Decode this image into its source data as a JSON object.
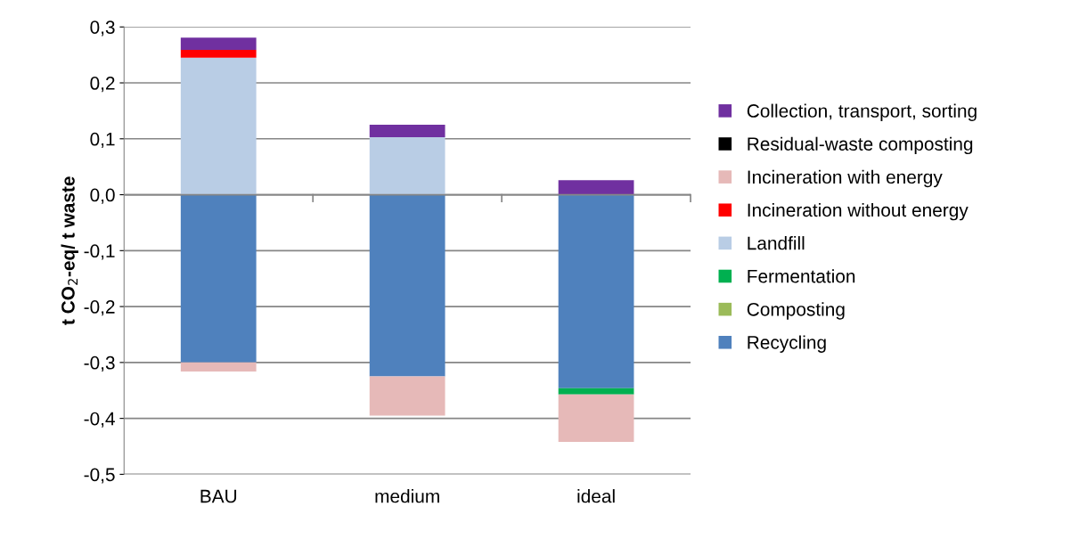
{
  "chart_data": {
    "type": "bar",
    "stacked": true,
    "ylabel": "t CO$_{2}$-eq/ t waste",
    "categories": [
      "BAU",
      "medium",
      "ideal"
    ],
    "series": [
      {
        "name": "Recycling",
        "color": "#4f81bd",
        "values": [
          -0.3,
          -0.325,
          -0.346
        ]
      },
      {
        "name": "Composting",
        "color": "#9bbb59",
        "values": [
          0,
          0,
          0
        ]
      },
      {
        "name": "Fermentation",
        "color": "#00b050",
        "values": [
          0,
          0,
          -0.011
        ]
      },
      {
        "name": "Landfill",
        "color": "#b9cde5",
        "values": [
          0.245,
          0.103,
          0
        ]
      },
      {
        "name": "Incineration without energy",
        "color": "#ff0000",
        "values": [
          0.014,
          0,
          0
        ]
      },
      {
        "name": "Incineration with energy",
        "color": "#e6b9b8",
        "values": [
          -0.016,
          -0.07,
          -0.085
        ]
      },
      {
        "name": "Residual-waste composting",
        "color": "#000000",
        "values": [
          0,
          0,
          0
        ]
      },
      {
        "name": "Collection, transport, sorting",
        "color": "#7030a0",
        "values": [
          0.022,
          0.022,
          0.026
        ]
      }
    ],
    "ylim": [
      -0.5,
      0.3
    ],
    "yticks": [
      {
        "value": -0.5,
        "label": "-0,5"
      },
      {
        "value": -0.4,
        "label": "-0,4"
      },
      {
        "value": -0.3,
        "label": "-0,3"
      },
      {
        "value": -0.2,
        "label": "-0,2"
      },
      {
        "value": -0.1,
        "label": "-0,1"
      },
      {
        "value": 0,
        "label": "0,0"
      },
      {
        "value": 0.1,
        "label": "0,1"
      },
      {
        "value": 0.2,
        "label": "0,2"
      },
      {
        "value": 0.3,
        "label": "0,3"
      }
    ],
    "grid": "y",
    "legend": "right"
  }
}
